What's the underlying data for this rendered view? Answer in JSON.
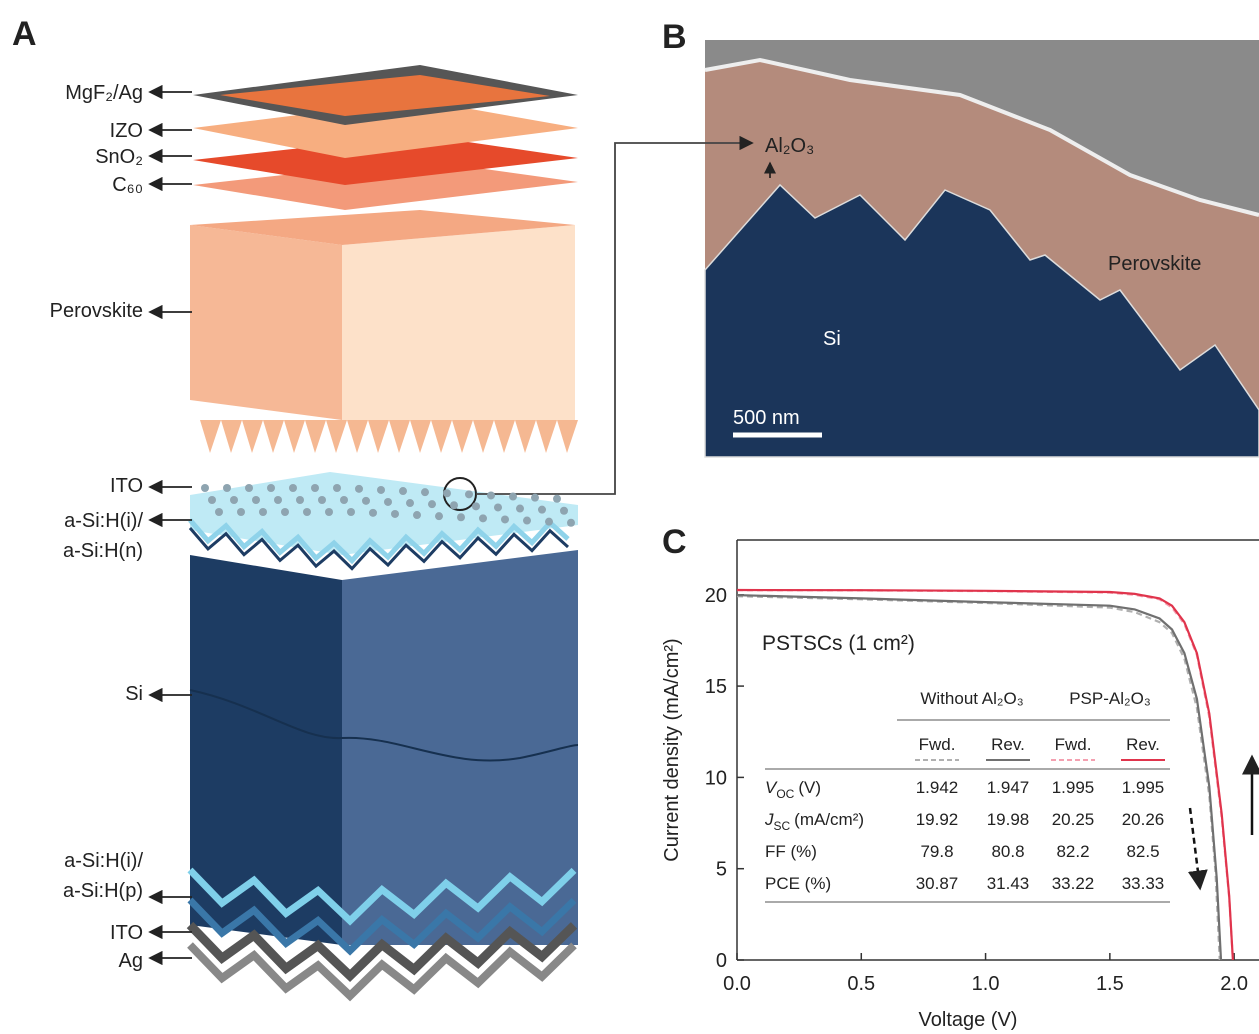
{
  "panel_a": {
    "letter": "A",
    "labels": [
      {
        "lines": [
          "MgF₂/Ag"
        ]
      },
      {
        "lines": [
          "IZO"
        ]
      },
      {
        "lines": [
          "SnO₂"
        ]
      },
      {
        "lines": [
          "C₆₀"
        ]
      },
      {
        "lines": [
          "Perovskite"
        ]
      },
      {
        "lines": [
          "ITO"
        ]
      },
      {
        "lines": [
          "a-Si:H(i)/",
          "a-Si:H(n)"
        ]
      },
      {
        "lines": [
          "Si"
        ]
      },
      {
        "lines": [
          "a-Si:H(i)/",
          "a-Si:H(p)"
        ]
      },
      {
        "lines": [
          "ITO"
        ]
      },
      {
        "lines": [
          "Ag"
        ]
      }
    ]
  },
  "panel_b": {
    "letter": "B",
    "labels": [
      "Al₂O₃",
      "Perovskite",
      "Si"
    ],
    "scale_bar": "500 nm"
  },
  "chart_data": {
    "type": "line",
    "letter": "C",
    "x_label": "Voltage (V)",
    "y_label": "Current density (mA/cm²)",
    "annotation": "PSTSCs (1 cm²)",
    "xlim": [
      0,
      2.1
    ],
    "ylim": [
      0,
      23
    ],
    "xticks": [
      {
        "value": 0,
        "label": "0.0"
      },
      {
        "value": 0.5,
        "label": "0.5"
      },
      {
        "value": 1,
        "label": "1.0"
      },
      {
        "value": 1.5,
        "label": "1.5"
      },
      {
        "value": 2,
        "label": "2.0"
      }
    ],
    "yticks": [
      0,
      5,
      10,
      15,
      20
    ],
    "series": [
      {
        "color": "#b0b0b0",
        "dash": true,
        "x": [
          0,
          0.5,
          1.0,
          1.5,
          1.6,
          1.7,
          1.75,
          1.8,
          1.85,
          1.9,
          1.925,
          1.942
        ],
        "values": [
          19.92,
          19.75,
          19.55,
          19.3,
          19.05,
          18.5,
          17.9,
          16.5,
          13.8,
          9,
          4.8,
          0
        ]
      },
      {
        "color": "#707070",
        "dash": false,
        "x": [
          0,
          0.5,
          1.0,
          1.5,
          1.6,
          1.7,
          1.75,
          1.8,
          1.85,
          1.9,
          1.93,
          1.947
        ],
        "values": [
          19.98,
          19.8,
          19.6,
          19.4,
          19.2,
          18.7,
          18.1,
          16.8,
          14.3,
          9.5,
          4.5,
          0
        ]
      },
      {
        "color": "#f4a0b0",
        "dash": true,
        "x": [
          0,
          0.5,
          1.0,
          1.5,
          1.6,
          1.7,
          1.75,
          1.8,
          1.85,
          1.9,
          1.95,
          1.98,
          1.995
        ],
        "values": [
          20.25,
          20.24,
          20.2,
          20.12,
          20.0,
          19.75,
          19.3,
          18.4,
          16.7,
          13.3,
          7.8,
          3.4,
          0
        ]
      },
      {
        "color": "#e0344c",
        "dash": false,
        "x": [
          0,
          0.5,
          1.0,
          1.5,
          1.6,
          1.7,
          1.75,
          1.8,
          1.85,
          1.9,
          1.95,
          1.98,
          1.995
        ],
        "values": [
          20.26,
          20.25,
          20.22,
          20.15,
          20.05,
          19.8,
          19.4,
          18.5,
          16.8,
          13.5,
          8,
          3.5,
          0
        ]
      }
    ],
    "table": {
      "groups": [
        "Without Al₂O₃",
        "PSP-Al₂O₃"
      ],
      "columns": [
        "Fwd.",
        "Rev.",
        "Fwd.",
        "Rev."
      ],
      "rows": [
        {
          "label": {
            "symbol": "V",
            "sub": "OC",
            "unit": "(V)"
          },
          "values": [
            1.942,
            1.947,
            1.995,
            1.995
          ]
        },
        {
          "label": {
            "symbol": "J",
            "sub": "SC",
            "unit": "(mA/cm²)"
          },
          "values": [
            19.92,
            19.98,
            20.25,
            20.26
          ]
        },
        {
          "label": "FF  (%)",
          "values": [
            79.8,
            80.8,
            82.2,
            82.5
          ]
        },
        {
          "label": "PCE (%)",
          "values": [
            30.87,
            31.43,
            33.22,
            33.33
          ]
        }
      ]
    }
  }
}
